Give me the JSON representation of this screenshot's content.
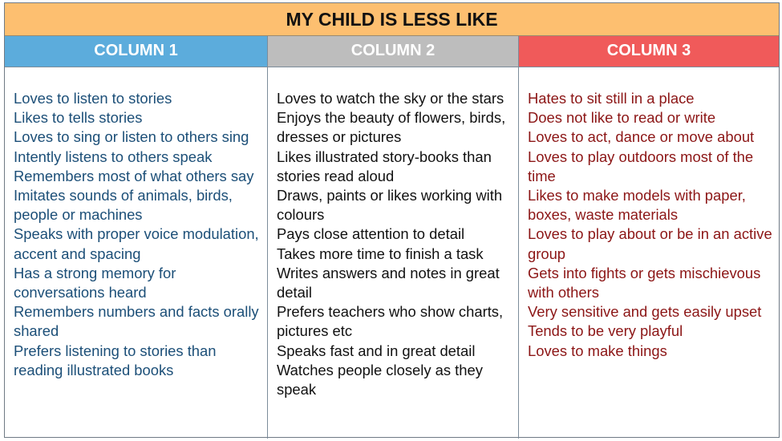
{
  "title": "MY CHILD IS LESS LIKE",
  "colors": {
    "title_bg": "#fdbf70",
    "col1": "#5cacdc",
    "col2": "#bdbdbd",
    "col3": "#f05a5a",
    "col1_text": "#1c4f78",
    "col2_text": "#111111",
    "col3_text": "#8c1616"
  },
  "columns": [
    {
      "header": "COLUMN 1",
      "items": [
        "Loves to listen to stories",
        "Likes to tells stories",
        "Loves to sing or listen to others sing",
        "Intently listens to others speak",
        "Remembers most of what others say",
        "Imitates sounds of animals, birds, people or machines",
        "Speaks with proper voice modulation, accent and spacing",
        "Has a strong memory for conversations heard",
        "Remembers numbers and facts orally shared",
        "Prefers listening to stories than reading illustrated books"
      ]
    },
    {
      "header": "COLUMN 2",
      "items": [
        "Loves to watch the sky or the stars",
        "Enjoys the beauty of flowers, birds, dresses or pictures",
        "Likes illustrated story-books than stories read aloud",
        "Draws, paints or likes working with colours",
        "Pays close attention to detail",
        "Takes more time to finish a task",
        "Writes answers and notes in great detail",
        "Prefers teachers who show charts, pictures etc",
        "Speaks fast and in great detail",
        "Watches people closely as they speak"
      ]
    },
    {
      "header": "COLUMN 3",
      "items": [
        "Hates to sit still in a place",
        "Does not like to read or write",
        "Loves to act, dance or move about",
        "Loves to play outdoors most of the time",
        "Likes to make models with paper, boxes, waste materials",
        "Loves to play about or be in an active group",
        "Gets into fights or gets mischievous with others",
        "Very sensitive and gets easily upset",
        "Tends to be very playful",
        "Loves to make things"
      ]
    }
  ]
}
